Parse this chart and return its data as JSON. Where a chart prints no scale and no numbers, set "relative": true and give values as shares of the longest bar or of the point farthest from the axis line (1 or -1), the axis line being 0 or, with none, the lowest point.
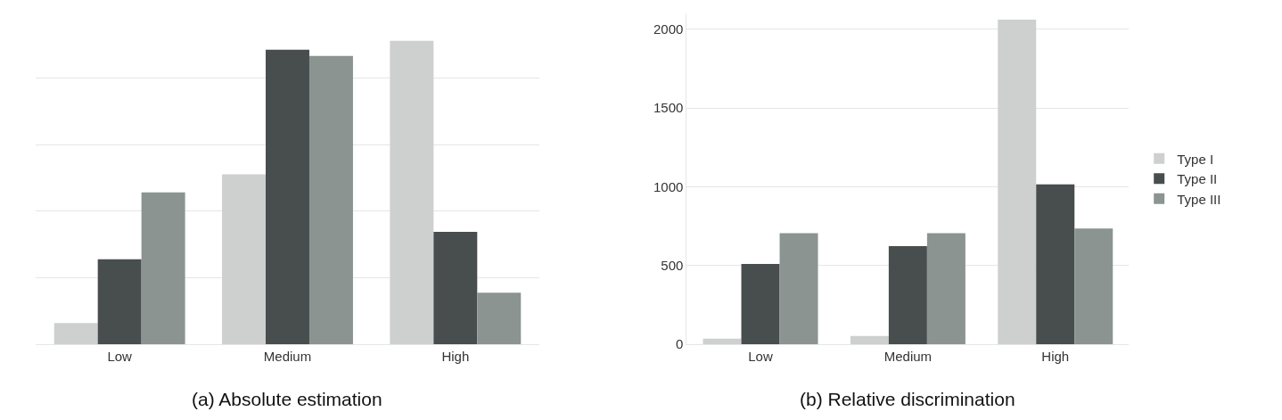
{
  "chart_data": [
    {
      "type": "bar",
      "title": "(a) Absolute estimation",
      "relative": true,
      "grid": "y",
      "legend": false,
      "categories": [
        "Low",
        "Medium",
        "High"
      ],
      "series": [
        {
          "color": "#cdd0ce",
          "values": [
            0.07,
            0.56,
            1
          ]
        },
        {
          "color": "#474e4d",
          "values": [
            0.28,
            0.97,
            0.37
          ]
        },
        {
          "color": "#8b9490",
          "values": [
            0.5,
            0.95,
            0.17
          ]
        }
      ]
    },
    {
      "type": "bar",
      "title": "(b) Relative discrimination",
      "grid": "y",
      "legend": "right",
      "categories": [
        "Low",
        "Medium",
        "High"
      ],
      "ylim": [
        0,
        2100
      ],
      "yticks": [
        0,
        500,
        1000,
        1500,
        2000
      ],
      "series": [
        {
          "name": "Type I",
          "color": "#cdd0ce",
          "values": [
            35,
            53,
            2060
          ]
        },
        {
          "name": "Type II",
          "color": "#474e4d",
          "values": [
            510,
            622,
            1015
          ]
        },
        {
          "name": "Type III",
          "color": "#8b9490",
          "values": [
            705,
            705,
            735
          ]
        }
      ]
    }
  ]
}
